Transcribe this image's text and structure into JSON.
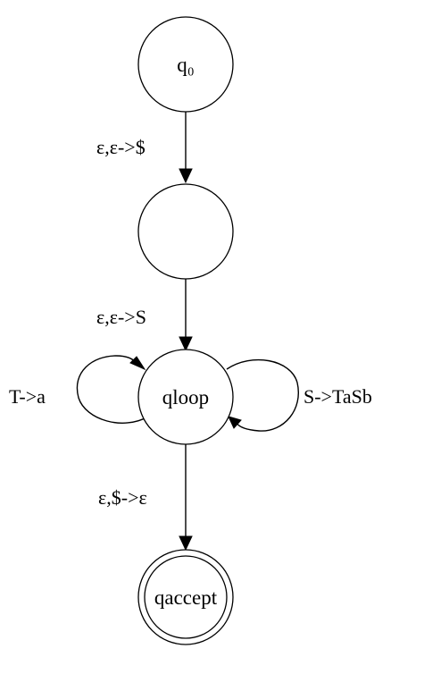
{
  "diagram": {
    "states": {
      "q0": {
        "label": "q₀"
      },
      "q1": {
        "label": ""
      },
      "qloop": {
        "label": "qloop"
      },
      "qaccept": {
        "label": "qaccept",
        "accepting": true
      }
    },
    "transitions": {
      "q0_to_q1": {
        "label": "ε,ε->$"
      },
      "q1_to_qloop": {
        "label": "ε,ε->S"
      },
      "qloop_self_left": {
        "label": "T->a"
      },
      "qloop_self_right": {
        "label": "S->TaSb"
      },
      "qloop_to_qaccept": {
        "label": "ε,$->ε"
      }
    }
  }
}
